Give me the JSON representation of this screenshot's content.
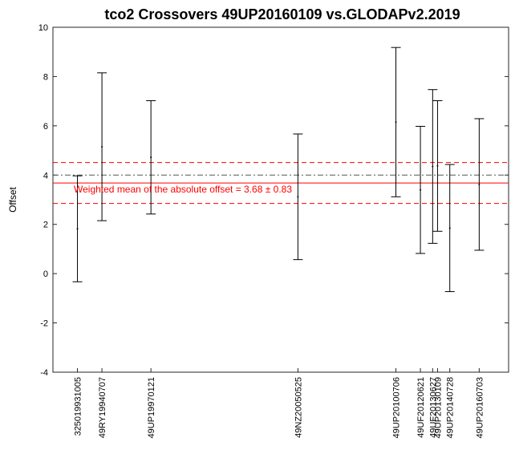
{
  "chart_data": {
    "type": "errorbar",
    "title": "tco2 Crossovers 49UP20160109 vs.GLODAPv2.2019",
    "xlabel": "",
    "ylabel": "Offset",
    "ylim": [
      -4,
      10
    ],
    "yticks": [
      -4,
      -2,
      0,
      2,
      4,
      6,
      8,
      10
    ],
    "grid": false,
    "points": [
      {
        "label": "325019931005",
        "x": 1,
        "y": 1.82,
        "err": 2.15
      },
      {
        "label": "49RY19940707",
        "x": 2,
        "y": 5.15,
        "err": 3.0
      },
      {
        "label": "49UP19970121",
        "x": 4,
        "y": 4.72,
        "err": 2.3
      },
      {
        "label": "49NZ20050525",
        "x": 10,
        "y": 3.12,
        "err": 2.55
      },
      {
        "label": "49UP20100706",
        "x": 14,
        "y": 6.15,
        "err": 3.03
      },
      {
        "label": "49UF20120621",
        "x": 15,
        "y": 3.4,
        "err": 2.58
      },
      {
        "label": "49UF20130627",
        "x": 15.5,
        "y": 4.35,
        "err": 3.12
      },
      {
        "label": "49UP20130109",
        "x": 15.7,
        "y": 4.37,
        "err": 2.65
      },
      {
        "label": "49UP20140728",
        "x": 16.2,
        "y": 1.85,
        "err": 2.58
      },
      {
        "label": "49UP20160703",
        "x": 17.4,
        "y": 3.62,
        "err": 2.67
      }
    ],
    "reference_lines": [
      {
        "y": 4.0,
        "color": "#555555",
        "style": "dash-dot"
      },
      {
        "y": 3.68,
        "color": "#ff0000",
        "style": "solid"
      },
      {
        "y": 4.51,
        "color": "#ff0000",
        "style": "dashed"
      },
      {
        "y": 2.85,
        "color": "#ff0000",
        "style": "dashed"
      }
    ],
    "annotation": "Weighted mean of the absolute offset = 3.68 ± 0.83",
    "xlim": [
      0,
      18.6
    ]
  }
}
